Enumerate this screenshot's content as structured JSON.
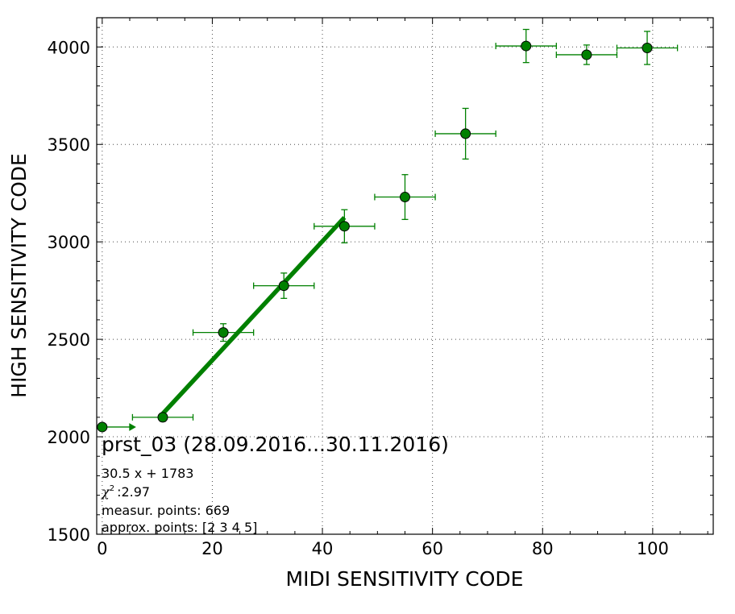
{
  "chart_data": {
    "type": "scatter",
    "title": "prst_03 (28.09.2016...30.11.2016)",
    "xlabel": "MIDI SENSITIVITY CODE",
    "ylabel": "HIGH SENSITIVITY CODE",
    "xlim": [
      -1,
      111
    ],
    "ylim": [
      1500,
      4150
    ],
    "xticks": [
      0,
      20,
      40,
      60,
      80,
      100
    ],
    "yticks": [
      1500,
      2000,
      2500,
      3000,
      3500,
      4000
    ],
    "xtick_labels": [
      "0",
      "20",
      "40",
      "60",
      "80",
      "100"
    ],
    "ytick_labels": [
      "1500",
      "2000",
      "2500",
      "3000",
      "3500",
      "4000"
    ],
    "grid": true,
    "colors": {
      "points": "#008000",
      "fit_line": "#008000",
      "axes": "#000000"
    },
    "series": [
      {
        "x": [
          0,
          11,
          22,
          33,
          44,
          55,
          66,
          77,
          88,
          99
        ],
        "y": [
          2050,
          2100,
          2535,
          2775,
          3080,
          3230,
          3555,
          4005,
          3960,
          3995
        ],
        "x_err": [
          0,
          5.5,
          5.5,
          5.5,
          5.5,
          5.5,
          5.5,
          5.5,
          5.5,
          5.5
        ],
        "y_err": [
          15,
          20,
          45,
          65,
          85,
          115,
          130,
          85,
          50,
          85
        ]
      }
    ],
    "fit_line": {
      "slope": 30.5,
      "intercept": 1783,
      "x_range": [
        11,
        44
      ]
    },
    "arrow_from_first_point": {
      "x_from": 0,
      "x_to": 6,
      "y": 2050
    },
    "annotations": [
      "30.5 x + 1783",
      ":2.97",
      "measur. points: 669",
      "approx. points: [2 3 4 5]"
    ],
    "chi_symbol": "χ",
    "chi_superscript": "2"
  }
}
